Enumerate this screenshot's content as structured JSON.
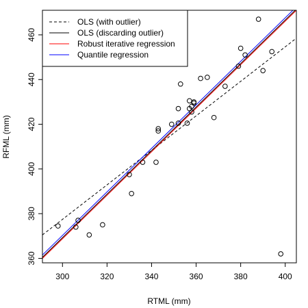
{
  "chart_data": {
    "type": "scatter",
    "title": "",
    "xlabel": "RTML (mm)",
    "ylabel": "RFML (mm)",
    "xlim": [
      291,
      405
    ],
    "ylim": [
      358,
      471
    ],
    "x_ticks": [
      300,
      320,
      340,
      360,
      380,
      400
    ],
    "y_ticks": [
      360,
      380,
      400,
      420,
      440,
      460
    ],
    "grid": false,
    "legend_position": "top-left",
    "points": {
      "x": [
        298,
        306,
        307,
        312,
        318,
        330,
        331,
        336,
        342,
        343,
        343,
        349,
        352,
        352,
        353,
        356,
        357,
        357,
        358,
        358,
        359,
        359,
        362,
        365,
        368,
        373,
        379,
        380,
        382,
        388,
        390,
        394,
        398
      ],
      "y": [
        374.5,
        374,
        377,
        370.5,
        375,
        397.5,
        389,
        403,
        403,
        417,
        418,
        420,
        427,
        420.5,
        438,
        420.5,
        427,
        430.5,
        425.5,
        428,
        430,
        429.5,
        440.5,
        441,
        423,
        437,
        446,
        454,
        451,
        467,
        444,
        452.5,
        362
      ]
    },
    "series": [
      {
        "name": "OLS (with outlier)",
        "style": "dashed",
        "color": "#000000",
        "line": {
          "x": [
            291,
            405
          ],
          "y": [
            370.5,
            458.5
          ]
        }
      },
      {
        "name": "OLS (discarding outlier)",
        "style": "solid",
        "color": "#000000",
        "line": {
          "x": [
            291,
            405
          ],
          "y": [
            360.5,
            471.5
          ]
        }
      },
      {
        "name": "Robust iterative regression",
        "style": "solid",
        "color": "#ff0000",
        "line": {
          "x": [
            291,
            405
          ],
          "y": [
            360.0,
            471.0
          ]
        }
      },
      {
        "name": "Quantile regression",
        "style": "solid",
        "color": "#0000ff",
        "line": {
          "x": [
            291,
            405
          ],
          "y": [
            361.5,
            472.5
          ]
        }
      }
    ]
  }
}
